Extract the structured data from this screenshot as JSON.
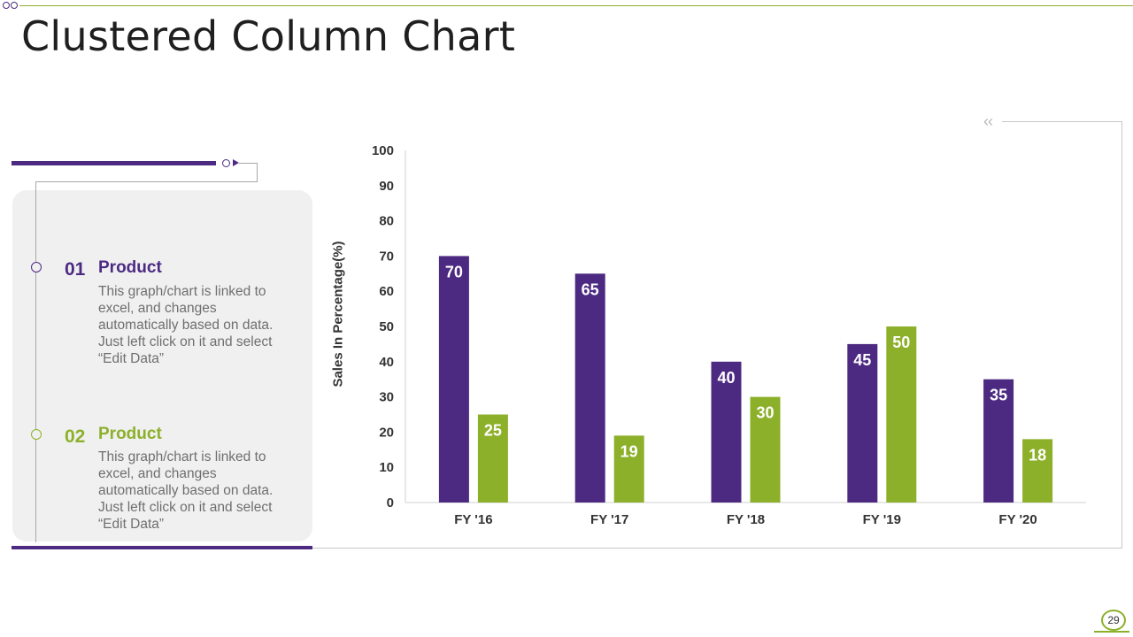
{
  "title": "Clustered Column Chart",
  "colors": {
    "purple": "#4d2a82",
    "green": "#8db02b"
  },
  "items": [
    {
      "number": "01",
      "label": "Product",
      "description": "This graph/chart is linked to excel, and changes automatically based on data. Just left click on it and select “Edit Data”"
    },
    {
      "number": "02",
      "label": "Product",
      "description": "This graph/chart is linked to excel, and changes automatically based on data. Just left click on it and select “Edit Data”"
    }
  ],
  "page_number": "29",
  "chart_data": {
    "type": "bar",
    "categories": [
      "FY '16",
      "FY '17",
      "FY '18",
      "FY '19",
      "FY '20"
    ],
    "series": [
      {
        "values": [
          70,
          65,
          40,
          45,
          35
        ],
        "color": "#4d2a82"
      },
      {
        "values": [
          25,
          19,
          30,
          50,
          18
        ],
        "color": "#8db02b"
      }
    ],
    "ylabel": "Sales In Percentage(%)",
    "ylim": [
      0,
      100
    ],
    "yticks": [
      0,
      10,
      20,
      30,
      40,
      50,
      60,
      70,
      80,
      90,
      100
    ],
    "data_labels": true,
    "grid": false,
    "legend": "none"
  }
}
